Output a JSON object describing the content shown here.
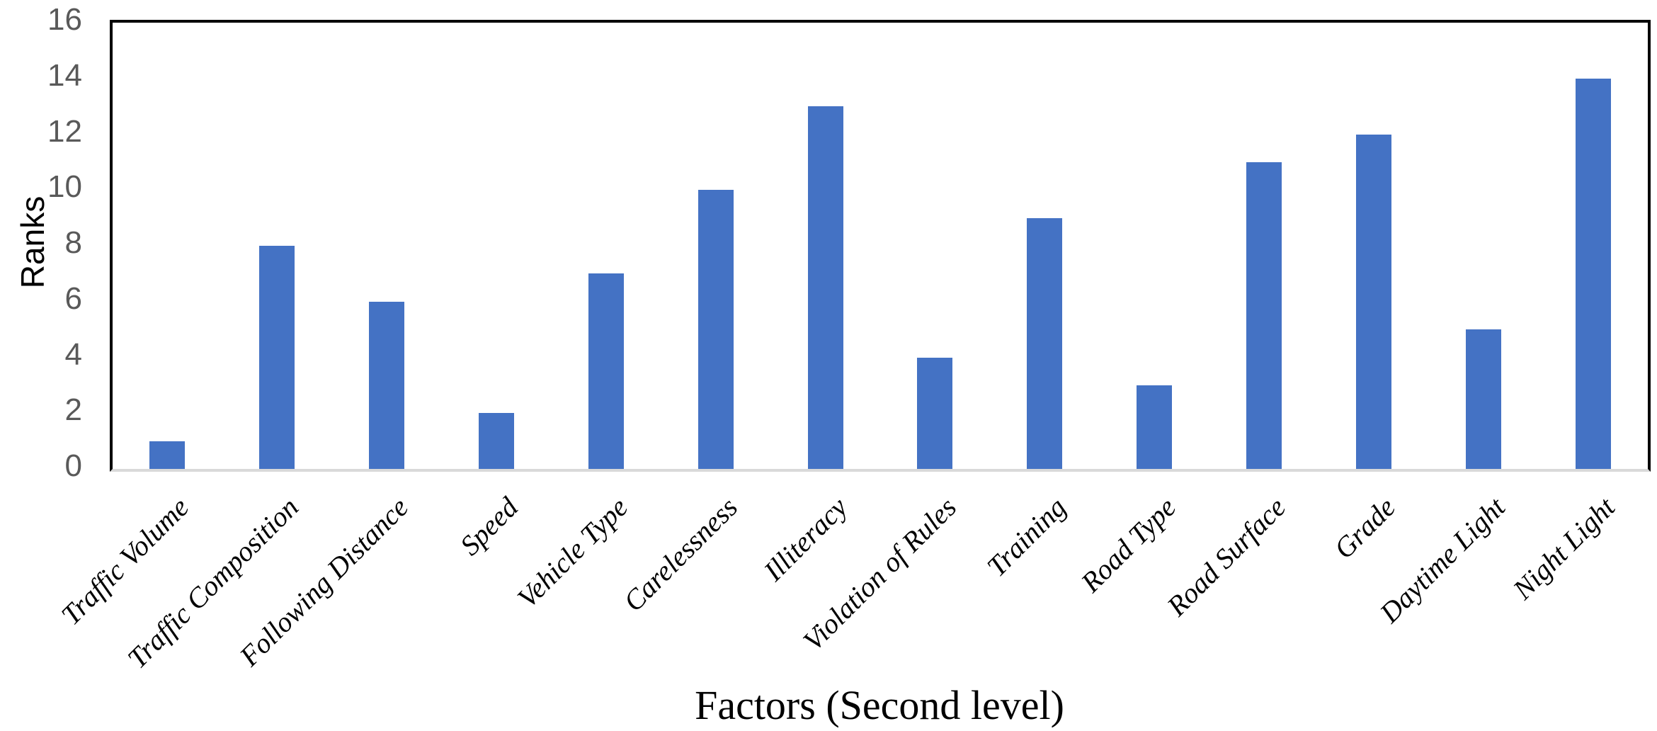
{
  "chart_data": {
    "type": "bar",
    "title": "",
    "xlabel": "Factors (Second level)",
    "ylabel": "Ranks",
    "categories": [
      "Traffic Volume",
      "Traffic Composition",
      "Following Distance",
      "Speed",
      "Vehicle Type",
      "Carelessness",
      "Illiteracy",
      "Violation of Rules",
      "Training",
      "Road Type",
      "Road Surface",
      "Grade",
      "Daytime Light",
      "Night Light"
    ],
    "values": [
      1,
      8,
      6,
      2,
      7,
      10,
      13,
      4,
      9,
      3,
      11,
      12,
      5,
      14
    ],
    "ylim": [
      0,
      16
    ],
    "yticks": [
      0,
      2,
      4,
      6,
      8,
      10,
      12,
      14,
      16
    ],
    "grid": false,
    "legend": false,
    "bar_color": "#4472C4",
    "ytick_label_color": "#595959",
    "category_label_color": "#000000",
    "baseline_color": "#D9D9D9",
    "plot_border_color": "#000000"
  }
}
